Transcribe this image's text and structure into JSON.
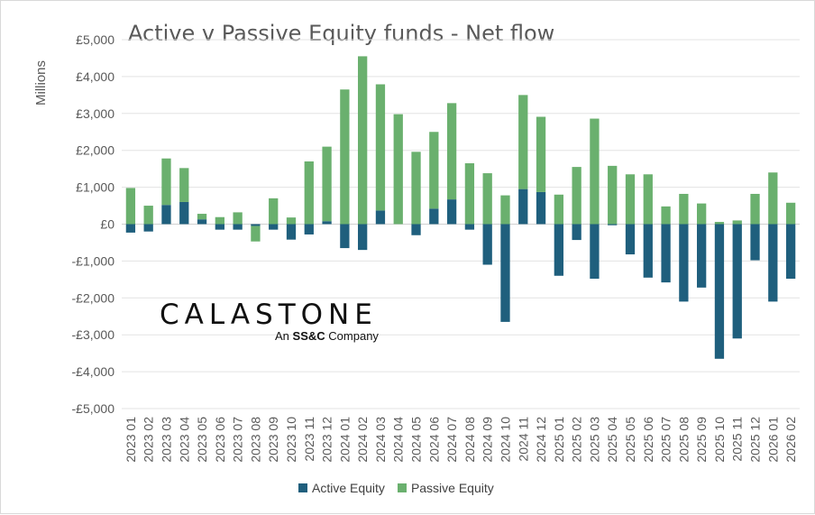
{
  "chart_data": {
    "type": "bar",
    "stacked": true,
    "title": "Active v Passive Equity funds - Net flow",
    "ylabel": "Millions",
    "xlabel": "",
    "ylim": [
      -5000,
      5000
    ],
    "yticks": [
      5000,
      4000,
      3000,
      2000,
      1000,
      0,
      -1000,
      -2000,
      -3000,
      -4000,
      -5000
    ],
    "ytick_labels": [
      "£5,000",
      "£4,000",
      "£3,000",
      "£2,000",
      "£1,000",
      "£0",
      "-£1,000",
      "-£2,000",
      "-£3,000",
      "-£4,000",
      "-£5,000"
    ],
    "grid": true,
    "legend_position": "bottom",
    "categories": [
      "2023 01",
      "2023 02",
      "2023 03",
      "2023 04",
      "2023 05",
      "2023 06",
      "2023 07",
      "2023 08",
      "2023 09",
      "2023 10",
      "2023 11",
      "2023 12",
      "2024 01",
      "2024 02",
      "2024 03",
      "2024 04",
      "2024 05",
      "2024 06",
      "2024 07",
      "2024 08",
      "2024 09",
      "2024 10",
      "2024 11",
      "2024 12",
      "2025 01",
      "2025 02",
      "2025 03",
      "2025 04",
      "2025 05",
      "2025 06",
      "2025 07",
      "2025 08",
      "2025 09",
      "2025 10",
      "2025 11",
      "2025 12",
      "2026 01",
      "2026 02"
    ],
    "series": [
      {
        "name": "Active Equity",
        "color": "#1f5f7d",
        "values": [
          -230,
          -200,
          520,
          600,
          130,
          -150,
          -150,
          -50,
          -150,
          -420,
          -280,
          80,
          -650,
          -700,
          370,
          0,
          -300,
          420,
          670,
          -150,
          -1100,
          -2650,
          950,
          870,
          -1400,
          -430,
          -1480,
          -30,
          -820,
          -1450,
          -1580,
          -2100,
          -1720,
          -3650,
          -3100,
          -980,
          -2100,
          -1480
        ]
      },
      {
        "name": "Passive Equity",
        "color": "#6ab06e",
        "values": [
          980,
          500,
          1260,
          920,
          150,
          190,
          320,
          -420,
          700,
          180,
          1700,
          2020,
          3650,
          4550,
          3420,
          2980,
          1960,
          2080,
          2610,
          1650,
          1380,
          780,
          2550,
          2040,
          800,
          1550,
          2860,
          1580,
          1350,
          1350,
          480,
          820,
          560,
          60,
          100,
          820,
          1400,
          580
        ]
      }
    ]
  },
  "legend": {
    "items": [
      {
        "label": "Active Equity",
        "color": "#1f5f7d"
      },
      {
        "label": "Passive Equity",
        "color": "#6ab06e"
      }
    ]
  },
  "logo": {
    "wordmark": "CALASTONE",
    "tagline_prefix": "An",
    "tagline_brand": "SS&C",
    "tagline_suffix": "Company"
  }
}
